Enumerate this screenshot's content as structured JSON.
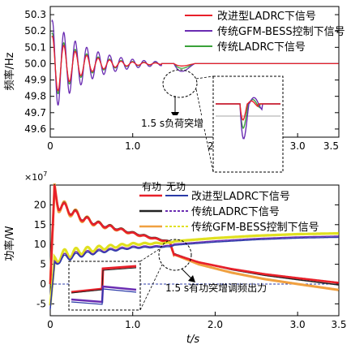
{
  "chart_data": [
    {
      "type": "line",
      "ylabel": "频率/Hz",
      "xlim": [
        0,
        3.5
      ],
      "ylim": [
        49.55,
        50.35
      ],
      "yticks": [
        "50.3",
        "50.2",
        "50.1",
        "50.0",
        "49.9",
        "49.8",
        "49.7",
        "49.6"
      ],
      "xticks": [
        "0",
        "1.0",
        "2.0",
        "3.0",
        "3.5"
      ],
      "series": [
        {
          "name": "改进型LADRC下信号",
          "color": "#e8202a"
        },
        {
          "name": "传统GFM-BESS控制下信号",
          "color": "#6a2cb2"
        },
        {
          "name": "传统LADRC下信号",
          "color": "#3aa23a"
        }
      ],
      "annotation": "1.5 s负荷突增",
      "peak_deviation_at_1_5s": {
        "改进型LADRC下信号": -0.03,
        "传统GFM-BESS控制下信号": -0.1,
        "传统LADRC下信号": -0.06
      }
    },
    {
      "type": "line",
      "ylabel": "功率/W",
      "xlabel": "t/s",
      "xlim": [
        0,
        3.5
      ],
      "ylim": [
        -8,
        25
      ],
      "scale_label": "×10",
      "scale_exp": "7",
      "yticks": [
        "20",
        "15",
        "10",
        "5",
        "0",
        "-5"
      ],
      "xticks": [
        "0",
        "1.0",
        "2.0",
        "3.0",
        "3.5"
      ],
      "legend_headers": [
        "有功",
        "无功"
      ],
      "series": [
        {
          "name": "改进型LADRC下信号",
          "active_color": "#e8202a",
          "reactive_color": "#2a3aa8"
        },
        {
          "name": "传统LADRC下信号",
          "active_color": "#222222",
          "reactive_color": "#6a2cb2"
        },
        {
          "name": "传统GFM-BESS控制下信号",
          "active_color": "#f0a040",
          "reactive_color": "#e0e020"
        }
      ],
      "active_power": {
        "x": [
          0.0,
          0.05,
          0.1,
          0.2,
          0.4,
          0.6,
          0.8,
          1.0,
          1.2,
          1.45,
          1.5,
          1.8,
          2.2,
          2.6,
          3.0,
          3.5
        ],
        "y": [
          0.0,
          24.0,
          20.0,
          19.0,
          16.5,
          15.0,
          14.0,
          12.8,
          11.8,
          10.6,
          7.5,
          5.5,
          3.8,
          2.5,
          1.5,
          0.3
        ]
      },
      "reactive_power": {
        "x": [
          0.0,
          0.05,
          0.1,
          0.3,
          0.6,
          1.0,
          1.45,
          1.5,
          2.0,
          2.5,
          3.0,
          3.5
        ],
        "y": [
          -6.0,
          5.0,
          6.5,
          7.5,
          8.5,
          9.5,
          9.8,
          10.2,
          11.0,
          11.6,
          12.0,
          12.2
        ]
      },
      "annotation": "1.5 s有功突增调频出力"
    }
  ]
}
